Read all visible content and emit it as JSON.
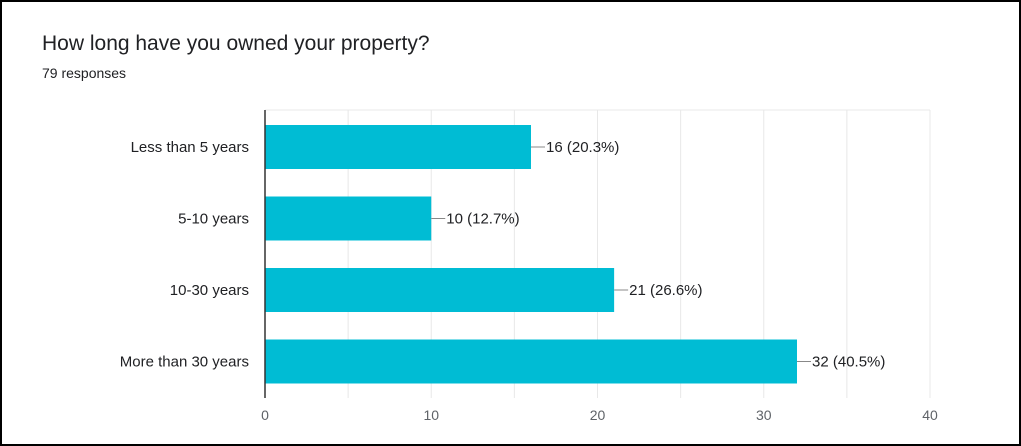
{
  "question": {
    "title": "How long have you owned your property?",
    "responses_text": "79 responses"
  },
  "colors": {
    "bar": "#00bcd4",
    "grid": "#e8e8e8",
    "axis": "#333333",
    "text": "#202124",
    "tick_text": "#5f6368"
  },
  "chart_data": {
    "type": "bar",
    "orientation": "horizontal",
    "title": "How long have you owned your property?",
    "subtitle": "79 responses",
    "categories": [
      "Less than 5 years",
      "5-10 years",
      "10-30 years",
      "More than 30 years"
    ],
    "values": [
      16,
      10,
      21,
      32
    ],
    "data_labels": [
      "16 (20.3%)",
      "10 (12.7%)",
      "21 (26.6%)",
      "32 (40.5%)"
    ],
    "xlim": [
      0,
      40
    ],
    "xticks": [
      0,
      10,
      20,
      30,
      40
    ],
    "grid": true,
    "legend": "none"
  }
}
